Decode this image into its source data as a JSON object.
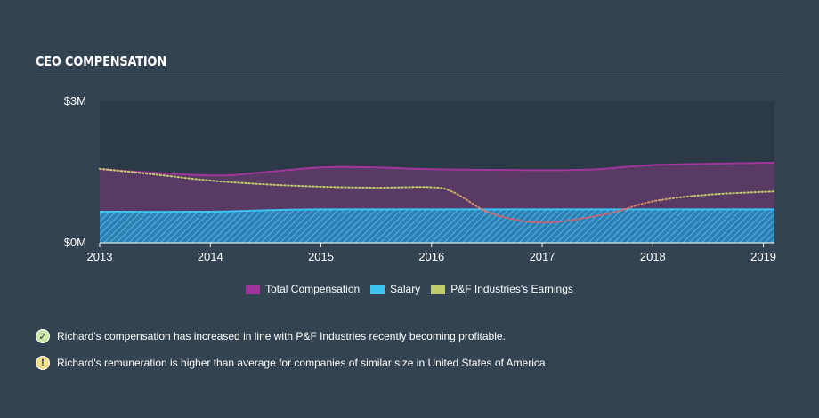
{
  "section": {
    "title": "CEO COMPENSATION"
  },
  "chart_data": {
    "type": "area",
    "title": "",
    "xlabel": "",
    "ylabel": "",
    "x_ticks": [
      "2013",
      "2014",
      "2015",
      "2016",
      "2017",
      "2018",
      "2019"
    ],
    "y_ticks": [
      "$0M",
      "$3M"
    ],
    "x_range": [
      2013,
      2019.1
    ],
    "ylim": [
      0,
      3000000
    ],
    "legend_position": "bottom-center",
    "series": [
      {
        "name": "Total Compensation",
        "color": "#a0369b",
        "style": "area",
        "points": [
          [
            2013.0,
            1560000
          ],
          [
            2014.0,
            1430000
          ],
          [
            2014.5,
            1500000
          ],
          [
            2015.0,
            1600000
          ],
          [
            2015.5,
            1600000
          ],
          [
            2016.0,
            1560000
          ],
          [
            2017.0,
            1540000
          ],
          [
            2017.5,
            1560000
          ],
          [
            2018.0,
            1650000
          ],
          [
            2019.1,
            1700000
          ]
        ]
      },
      {
        "name": "Salary",
        "color": "#3cc3f2",
        "style": "area-hatched",
        "points": [
          [
            2013.0,
            660000
          ],
          [
            2014.0,
            660000
          ],
          [
            2014.5,
            690000
          ],
          [
            2015.0,
            710000
          ],
          [
            2016.0,
            710000
          ],
          [
            2017.0,
            710000
          ],
          [
            2018.0,
            710000
          ],
          [
            2019.1,
            710000
          ]
        ]
      },
      {
        "name": "P&F Industries's Earnings",
        "color": "#c1cd6a",
        "style": "dotted-line",
        "points": [
          [
            2013.0,
            1570000
          ],
          [
            2013.5,
            1450000
          ],
          [
            2014.0,
            1320000
          ],
          [
            2014.5,
            1240000
          ],
          [
            2015.0,
            1190000
          ],
          [
            2015.5,
            1170000
          ],
          [
            2016.0,
            1180000
          ],
          [
            2016.2,
            1070000
          ],
          [
            2016.5,
            660000
          ],
          [
            2016.8,
            470000
          ],
          [
            2017.0,
            430000
          ],
          [
            2017.2,
            460000
          ],
          [
            2017.6,
            620000
          ],
          [
            2018.0,
            880000
          ],
          [
            2018.5,
            1020000
          ],
          [
            2019.1,
            1090000
          ]
        ]
      }
    ],
    "earnings_negative_color": "#e05d6b"
  },
  "notes": [
    {
      "icon": "check-icon",
      "text": "Richard's compensation has increased in line with P&F Industries recently becoming profitable."
    },
    {
      "icon": "warning-icon",
      "text": "Richard's remuneration is higher than average for companies of similar size in United States of America."
    }
  ]
}
